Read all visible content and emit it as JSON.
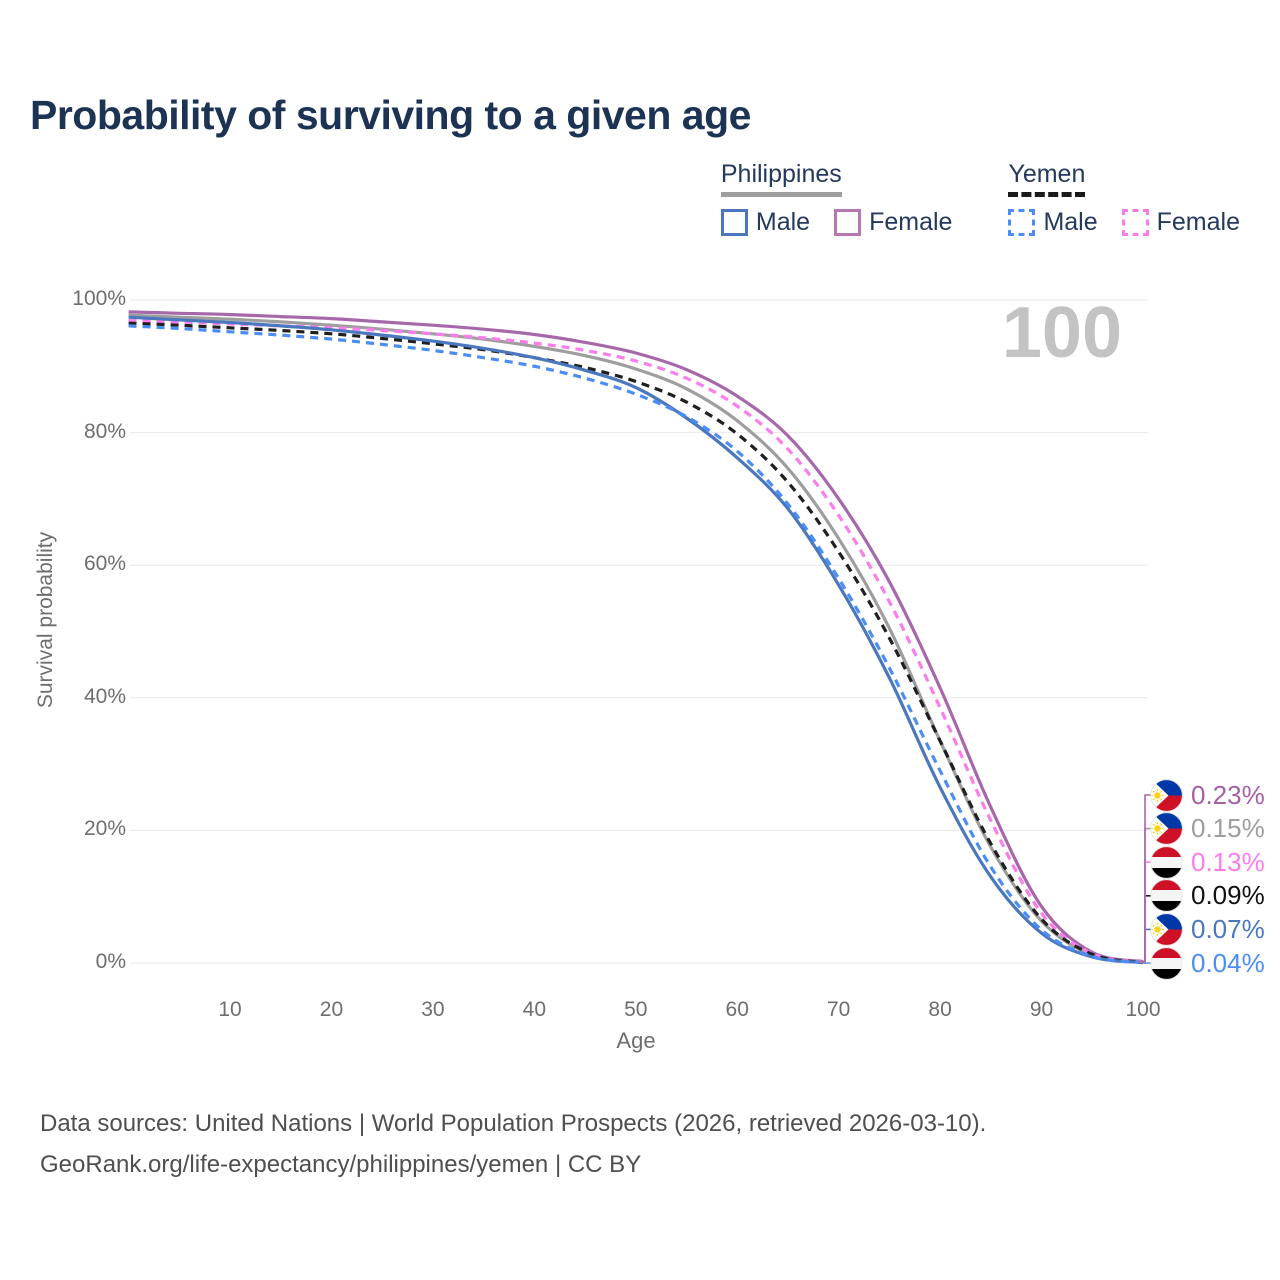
{
  "title": "Probability of surviving to a given age",
  "watermark": "100",
  "legend": {
    "groups": [
      {
        "label": "Philippines",
        "underline_style": "solid",
        "underline_color": "#9e9e9e",
        "items": [
          {
            "label": "Male",
            "color": "#4a77bd",
            "dashed": false
          },
          {
            "label": "Female",
            "color": "#b578b2",
            "dashed": false
          }
        ]
      },
      {
        "label": "Yemen",
        "underline_style": "dashed",
        "underline_color": "#1a1a1a",
        "items": [
          {
            "label": "Male",
            "color": "#4c8df5",
            "dashed": true
          },
          {
            "label": "Female",
            "color": "#fb7ceb",
            "dashed": true
          }
        ]
      }
    ]
  },
  "chart_data": {
    "type": "line",
    "title": "Probability of surviving to a given age",
    "xlabel": "Age",
    "ylabel": "Survival probability",
    "xlim": [
      0,
      100
    ],
    "ylim": [
      0,
      100
    ],
    "grid": "horizontal",
    "x_ticks": [
      10,
      20,
      30,
      40,
      50,
      60,
      70,
      80,
      90,
      100
    ],
    "y_tick_values": [
      0,
      20,
      40,
      60,
      80,
      100
    ],
    "y_tick_labels": [
      "0%",
      "20%",
      "40%",
      "60%",
      "80%",
      "100%"
    ],
    "ages": [
      0,
      5,
      10,
      15,
      20,
      25,
      30,
      35,
      40,
      45,
      50,
      55,
      60,
      65,
      70,
      75,
      80,
      85,
      90,
      95,
      100
    ],
    "series": [
      {
        "name": "Philippines Female",
        "country": "philippines",
        "sex": "female",
        "color": "#a768ab",
        "dashed": false,
        "end_label": "0.23%",
        "values": [
          98.2,
          98.0,
          97.8,
          97.5,
          97.2,
          96.7,
          96.2,
          95.6,
          94.8,
          93.6,
          92.0,
          89.5,
          85.5,
          79.5,
          70.0,
          57.5,
          41.5,
          23.5,
          8.5,
          1.6,
          0.23
        ]
      },
      {
        "name": "Philippines",
        "country": "philippines",
        "sex": "both",
        "color": "#9e9e9e",
        "dashed": false,
        "end_label": "0.15%",
        "values": [
          97.7,
          97.4,
          97.1,
          96.7,
          96.2,
          95.6,
          94.9,
          94.1,
          93.0,
          91.6,
          89.6,
          86.6,
          81.8,
          74.6,
          64.0,
          50.5,
          33.5,
          17.5,
          6.3,
          1.2,
          0.15
        ]
      },
      {
        "name": "Yemen Female",
        "country": "yemen",
        "sex": "female",
        "color": "#fb7ceb",
        "dashed": true,
        "end_label": "0.13%",
        "values": [
          96.9,
          96.7,
          96.4,
          96.1,
          95.8,
          95.4,
          94.9,
          94.3,
          93.5,
          92.4,
          90.8,
          88.2,
          84.0,
          77.5,
          67.5,
          54.5,
          38.5,
          21.5,
          7.5,
          1.4,
          0.13
        ]
      },
      {
        "name": "Yemen",
        "country": "yemen",
        "sex": "both",
        "color": "#1f1f1f",
        "dashed": true,
        "end_label": "0.09%",
        "values": [
          96.5,
          96.2,
          95.8,
          95.4,
          94.9,
          94.2,
          93.4,
          92.5,
          91.3,
          89.8,
          87.7,
          84.6,
          79.8,
          72.5,
          62.0,
          49.0,
          33.5,
          18.0,
          6.6,
          1.3,
          0.09
        ]
      },
      {
        "name": "Philippines Male",
        "country": "philippines",
        "sex": "male",
        "color": "#4a77bd",
        "dashed": false,
        "end_label": "0.07%",
        "values": [
          97.4,
          97.0,
          96.6,
          96.1,
          95.5,
          94.7,
          93.8,
          92.7,
          91.3,
          89.4,
          86.8,
          82.2,
          76.2,
          68.5,
          57.0,
          43.0,
          26.5,
          13.0,
          4.5,
          0.9,
          0.07
        ]
      },
      {
        "name": "Yemen Male",
        "country": "yemen",
        "sex": "male",
        "color": "#4c8df5",
        "dashed": true,
        "end_label": "0.04%",
        "values": [
          96.1,
          95.7,
          95.2,
          94.7,
          94.1,
          93.3,
          92.4,
          91.3,
          90.0,
          88.2,
          85.8,
          82.4,
          77.2,
          69.2,
          58.0,
          44.5,
          29.0,
          14.5,
          5.0,
          1.0,
          0.04
        ]
      }
    ]
  },
  "endpoint_labels": [
    {
      "flag": "philippines",
      "value": "0.23%",
      "color": "#a55fa5"
    },
    {
      "flag": "philippines",
      "value": "0.15%",
      "color": "#9e9e9e"
    },
    {
      "flag": "yemen",
      "value": "0.13%",
      "color": "#fb7ceb"
    },
    {
      "flag": "yemen",
      "value": "0.09%",
      "color": "#111111"
    },
    {
      "flag": "philippines",
      "value": "0.07%",
      "color": "#4a77bd"
    },
    {
      "flag": "yemen",
      "value": "0.04%",
      "color": "#4c8df5"
    }
  ],
  "footer": {
    "line1": "Data sources: United Nations | World Population Prospects (2026, retrieved 2026-03-10).",
    "line2": "GeoRank.org/life-expectancy/philippines/yemen | CC BY"
  }
}
